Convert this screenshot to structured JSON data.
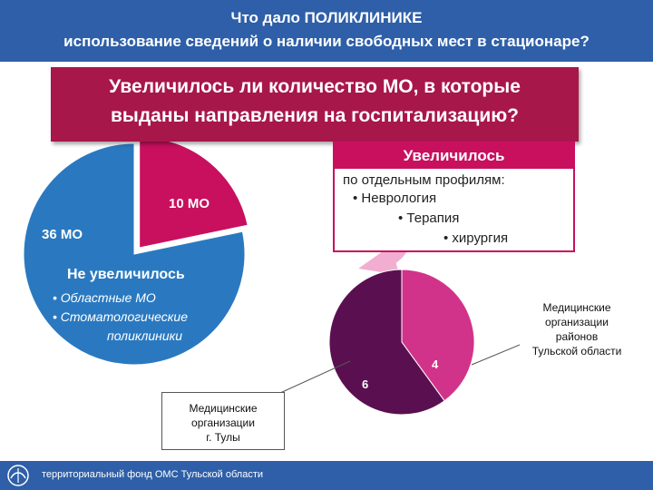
{
  "header": {
    "line1": "Что дало ПОЛИКЛИНИКЕ",
    "line2": "использование сведений о наличии свободных мест в стационаре?"
  },
  "question": {
    "line1": "Увеличилось ли количество МО, в которые",
    "line2": "выданы направления на госпитализацию?"
  },
  "increased_box": {
    "title": "Увеличилось",
    "subtitle": "по отдельным профилям:",
    "items": [
      "• Неврология",
      "• Терапия",
      "• хирургия"
    ]
  },
  "not_increased": {
    "title": "Не увеличилось",
    "items": [
      "• Областные МО",
      "• Стоматологические",
      "поликлиники"
    ]
  },
  "callouts": {
    "city": [
      "Медицинские",
      "организации",
      "г. Тулы"
    ],
    "districts": [
      "Медицинские",
      "организации",
      "районов",
      "Тульской области"
    ]
  },
  "footer": {
    "text": "территориальный фонд ОМС Тульской области"
  },
  "colors": {
    "header_bg": "#2e5fa8",
    "question_bg": "#a8174a",
    "blue": "#2a79c0",
    "magenta": "#c8105e",
    "purple": "#5a1050",
    "pink": "#d2338a",
    "arrow": "#f2aed0"
  },
  "chart_data": [
    {
      "type": "pie",
      "categories": [
        "Не увеличилось",
        "Увеличилось"
      ],
      "values": [
        36,
        10
      ],
      "labels": [
        "36 МО",
        "10 МО"
      ]
    },
    {
      "type": "pie",
      "categories": [
        "Медицинские организации г. Тулы",
        "Медицинские организации районов Тульской области"
      ],
      "values": [
        6,
        4
      ],
      "labels": [
        "6",
        "4"
      ]
    }
  ]
}
